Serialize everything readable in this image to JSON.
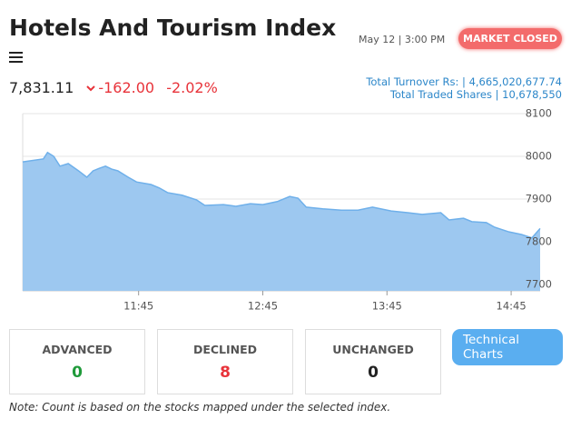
{
  "header": {
    "title": "Hotels And Tourism Index",
    "datetime": "May 12 | 3:00 PM",
    "status": "MARKET CLOSED"
  },
  "quote": {
    "value": "7,831.11",
    "change": "-162.00",
    "change_percent": "-2.02%"
  },
  "turnover": {
    "label": "Total Turnover Rs:",
    "value": "4,665,020,677.74"
  },
  "shares": {
    "label": "Total Traded Shares",
    "value": "10,678,550"
  },
  "chart_data": {
    "type": "area",
    "color": "#9dc8f0",
    "line_color": "#6fb0ea",
    "grid": true,
    "x": [
      "10:49",
      "10:59",
      "11:01",
      "11:04",
      "11:07",
      "11:11",
      "11:16",
      "11:20",
      "11:23",
      "11:26",
      "11:29",
      "11:32",
      "11:35",
      "11:40",
      "11:44",
      "11:51",
      "11:55",
      "11:59",
      "12:06",
      "12:13",
      "12:17",
      "12:26",
      "12:32",
      "12:39",
      "12:45",
      "12:52",
      "12:58",
      "13:02",
      "13:06",
      "13:14",
      "13:23",
      "13:31",
      "13:38",
      "13:47",
      "13:55",
      "14:02",
      "14:11",
      "14:15",
      "14:22",
      "14:26",
      "14:33",
      "14:37",
      "14:44",
      "14:50",
      "14:55",
      "14:59"
    ],
    "values": [
      7987,
      7994,
      8009,
      8000,
      7977,
      7983,
      7966,
      7951,
      7966,
      7972,
      7977,
      7970,
      7966,
      7951,
      7940,
      7934,
      7926,
      7915,
      7909,
      7898,
      7885,
      7887,
      7883,
      7889,
      7887,
      7894,
      7906,
      7902,
      7881,
      7877,
      7874,
      7874,
      7881,
      7872,
      7868,
      7864,
      7868,
      7851,
      7855,
      7847,
      7845,
      7834,
      7823,
      7817,
      7809,
      7831
    ],
    "xlim": [
      "10:49",
      "14:59"
    ],
    "xticks": [
      "11:45",
      "12:45",
      "13:45",
      "14:45"
    ],
    "ylim": [
      7685,
      8100
    ],
    "yticks": [
      7700,
      7800,
      7900,
      8000,
      8100
    ]
  },
  "stats": [
    {
      "label": "ADVANCED",
      "value": 0
    },
    {
      "label": "DECLINED",
      "value": 8
    },
    {
      "label": "UNCHANGED",
      "value": 0
    }
  ],
  "button": "Technical Charts",
  "note": "Note: Count is based on the stocks mapped under the selected index."
}
